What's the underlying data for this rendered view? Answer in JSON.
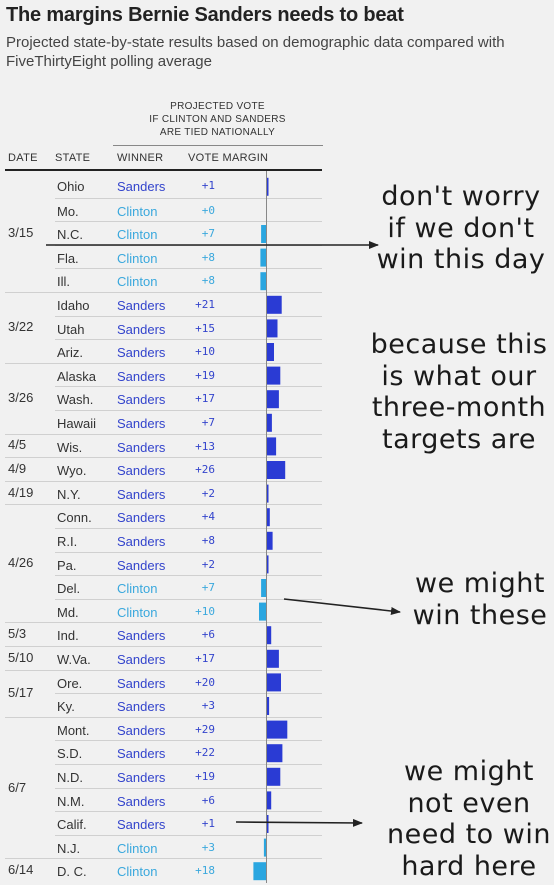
{
  "title": "The margins Bernie Sanders needs to beat",
  "subtitle": "Projected state-by-state results based on demographic data compared with FiveThirtyEight polling average",
  "projected_header": "PROJECTED VOTE\nIF CLINTON AND SANDERS\nARE TIED NATIONALLY",
  "column_headers": {
    "date": "DATE",
    "state": "STATE",
    "winner": "WINNER",
    "margin": "VOTE MARGIN"
  },
  "colors": {
    "Sanders": "#3344cc",
    "Clinton": "#3aa8dd",
    "sanders_bar": "#2a3bd4",
    "clinton_bar": "#2aa6e0"
  },
  "annotations": [
    "don't worry\nif we don't\nwin this day",
    "because this\nis what our\nthree-month\ntargets are",
    "we might\nwin these",
    "we might\nnot even\nneed to win\nhard here"
  ],
  "chart_data": {
    "type": "bar",
    "title": "The margins Bernie Sanders needs to beat",
    "subtitle": "Projected state-by-state results based on demographic data compared with FiveThirtyEight polling average",
    "value_axis": "VOTE MARGIN",
    "date_groups": [
      {
        "date": "3/15",
        "rows": 5
      },
      {
        "date": "3/22",
        "rows": 3
      },
      {
        "date": "3/26",
        "rows": 3
      },
      {
        "date": "4/5",
        "rows": 1
      },
      {
        "date": "4/9",
        "rows": 1
      },
      {
        "date": "4/19",
        "rows": 1
      },
      {
        "date": "4/26",
        "rows": 5
      },
      {
        "date": "5/3",
        "rows": 1
      },
      {
        "date": "5/10",
        "rows": 1
      },
      {
        "date": "5/17",
        "rows": 2
      },
      {
        "date": "6/7",
        "rows": 6
      },
      {
        "date": "6/14",
        "rows": 1
      }
    ],
    "rows": [
      {
        "state": "Ohio",
        "winner": "Sanders",
        "margin": 1,
        "margin_label": "+1"
      },
      {
        "state": "Mo.",
        "winner": "Clinton",
        "margin": 0,
        "margin_label": "+0"
      },
      {
        "state": "N.C.",
        "winner": "Clinton",
        "margin": 7,
        "margin_label": "+7"
      },
      {
        "state": "Fla.",
        "winner": "Clinton",
        "margin": 8,
        "margin_label": "+8"
      },
      {
        "state": "Ill.",
        "winner": "Clinton",
        "margin": 8,
        "margin_label": "+8"
      },
      {
        "state": "Idaho",
        "winner": "Sanders",
        "margin": 21,
        "margin_label": "+21"
      },
      {
        "state": "Utah",
        "winner": "Sanders",
        "margin": 15,
        "margin_label": "+15"
      },
      {
        "state": "Ariz.",
        "winner": "Sanders",
        "margin": 10,
        "margin_label": "+10"
      },
      {
        "state": "Alaska",
        "winner": "Sanders",
        "margin": 19,
        "margin_label": "+19"
      },
      {
        "state": "Wash.",
        "winner": "Sanders",
        "margin": 17,
        "margin_label": "+17"
      },
      {
        "state": "Hawaii",
        "winner": "Sanders",
        "margin": 7,
        "margin_label": "+7"
      },
      {
        "state": "Wis.",
        "winner": "Sanders",
        "margin": 13,
        "margin_label": "+13"
      },
      {
        "state": "Wyo.",
        "winner": "Sanders",
        "margin": 26,
        "margin_label": "+26"
      },
      {
        "state": "N.Y.",
        "winner": "Sanders",
        "margin": 2,
        "margin_label": "+2"
      },
      {
        "state": "Conn.",
        "winner": "Sanders",
        "margin": 4,
        "margin_label": "+4"
      },
      {
        "state": "R.I.",
        "winner": "Sanders",
        "margin": 8,
        "margin_label": "+8"
      },
      {
        "state": "Pa.",
        "winner": "Sanders",
        "margin": 2,
        "margin_label": "+2"
      },
      {
        "state": "Del.",
        "winner": "Clinton",
        "margin": 7,
        "margin_label": "+7"
      },
      {
        "state": "Md.",
        "winner": "Clinton",
        "margin": 10,
        "margin_label": "+10"
      },
      {
        "state": "Ind.",
        "winner": "Sanders",
        "margin": 6,
        "margin_label": "+6"
      },
      {
        "state": "W.Va.",
        "winner": "Sanders",
        "margin": 17,
        "margin_label": "+17"
      },
      {
        "state": "Ore.",
        "winner": "Sanders",
        "margin": 20,
        "margin_label": "+20"
      },
      {
        "state": "Ky.",
        "winner": "Sanders",
        "margin": 3,
        "margin_label": "+3"
      },
      {
        "state": "Mont.",
        "winner": "Sanders",
        "margin": 29,
        "margin_label": "+29"
      },
      {
        "state": "S.D.",
        "winner": "Sanders",
        "margin": 22,
        "margin_label": "+22"
      },
      {
        "state": "N.D.",
        "winner": "Sanders",
        "margin": 19,
        "margin_label": "+19"
      },
      {
        "state": "N.M.",
        "winner": "Sanders",
        "margin": 6,
        "margin_label": "+6"
      },
      {
        "state": "Calif.",
        "winner": "Sanders",
        "margin": 1,
        "margin_label": "+1"
      },
      {
        "state": "N.J.",
        "winner": "Clinton",
        "margin": 3,
        "margin_label": "+3"
      },
      {
        "state": "D. C.",
        "winner": "Clinton",
        "margin": 18,
        "margin_label": "+18"
      }
    ]
  }
}
